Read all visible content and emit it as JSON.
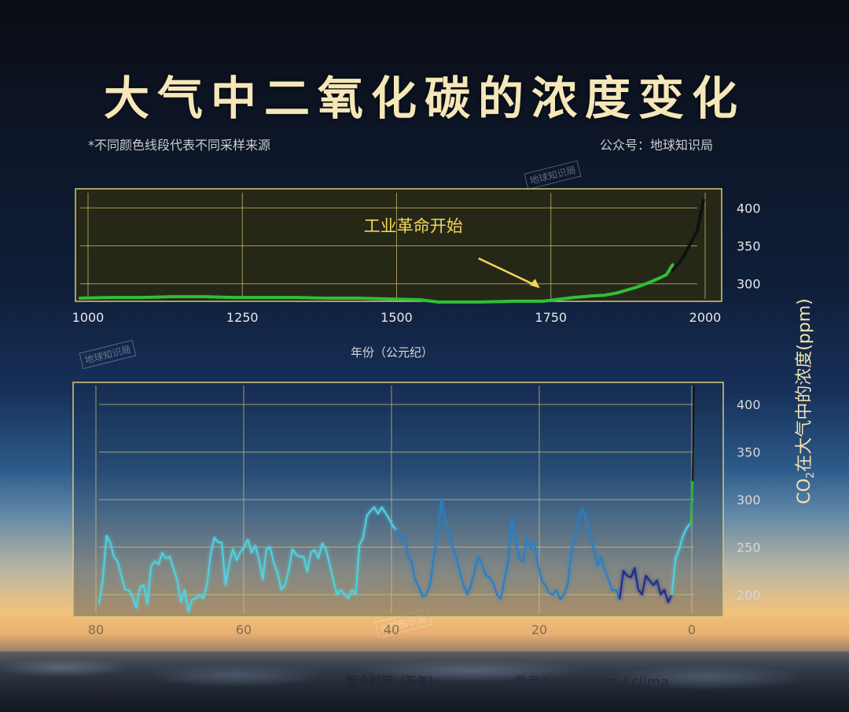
{
  "title": "大气中二氧化碳的浓度变化",
  "note": "*不同颜色线段代表不同采样来源",
  "source": "公众号：地球知识局",
  "watermark": "地球知识局",
  "y_axis_label_main": "CO",
  "y_axis_label_sub": "2",
  "y_axis_label_rest": "在大气中的浓度(ppm)",
  "reference": "参考：wiki.com / clima",
  "colors": {
    "title": "#f6e7b8",
    "grid": "#d8c878",
    "green": "#2fbf3a",
    "black": "#111111",
    "cyan": "#4fd3e0",
    "blue": "#2a7fc2",
    "navy": "#1a2a90"
  },
  "chart_data": [
    {
      "type": "line",
      "xlabel": "年份（公元纪）",
      "ylabel": "",
      "xlim": [
        1000,
        2000
      ],
      "ylim": [
        280,
        420
      ],
      "x_ticks": [
        "1000",
        "1250",
        "1500",
        "1750",
        "2000"
      ],
      "y_ticks": [
        "300",
        "350",
        "400"
      ],
      "annotation": {
        "text": "工业革命开始",
        "x": 1750,
        "y": 290
      },
      "series": [
        {
          "color": "green",
          "x": [
            1000,
            1050,
            1100,
            1150,
            1200,
            1250,
            1300,
            1350,
            1400,
            1450,
            1500,
            1550,
            1580,
            1600,
            1650,
            1700,
            1750,
            1780,
            1800,
            1830,
            1850,
            1870,
            1900,
            1920,
            1940,
            1950,
            1960
          ],
          "y": [
            281,
            282,
            282,
            283,
            283,
            282,
            282,
            282,
            281,
            281,
            280,
            279,
            276,
            276,
            276,
            277,
            277,
            280,
            282,
            284,
            285,
            288,
            295,
            301,
            308,
            312,
            325
          ]
        },
        {
          "color": "black",
          "x": [
            1960,
            1970,
            1980,
            1990,
            2000,
            2010
          ],
          "y": [
            318,
            327,
            339,
            355,
            370,
            410
          ]
        }
      ]
    },
    {
      "type": "line",
      "xlabel": "距今时间（万年）",
      "ylabel": "",
      "xlim": [
        80,
        0
      ],
      "ylim": [
        180,
        420
      ],
      "x_ticks": [
        "80",
        "60",
        "40",
        "20",
        "0"
      ],
      "y_ticks": [
        "200",
        "250",
        "300",
        "350",
        "400"
      ],
      "series": [
        {
          "color": "cyan",
          "x": [
            80,
            79.5,
            79,
            78.5,
            78,
            77.5,
            77,
            76.5,
            76,
            75.5,
            75,
            74.5,
            74,
            73.5,
            73,
            72.5,
            72,
            71.5,
            71,
            70.5,
            70,
            69.5,
            69,
            68.5,
            68,
            67.5,
            67,
            66.5,
            66,
            65.5,
            65,
            64.5,
            64,
            63.5,
            63,
            62.5,
            62,
            61.5,
            61,
            60.5,
            60,
            59.5,
            59,
            58.5,
            58,
            57.5,
            57,
            56.5,
            56,
            55.5,
            55,
            54.5,
            54,
            53.5,
            53,
            52.5,
            52,
            51.5,
            51,
            50.5,
            50,
            49.5,
            49,
            48.5,
            48,
            47.5,
            47,
            46.5,
            46,
            45.5,
            45,
            44.5,
            44,
            43.5,
            43,
            42.5,
            42,
            41.5,
            41,
            40.5,
            40
          ],
          "y": [
            190,
            215,
            262,
            255,
            240,
            235,
            220,
            205,
            205,
            198,
            186,
            208,
            210,
            190,
            230,
            235,
            232,
            244,
            238,
            240,
            228,
            215,
            192,
            205,
            182,
            195,
            196,
            200,
            196,
            210,
            242,
            260,
            255,
            255,
            210,
            232,
            248,
            236,
            245,
            250,
            258,
            244,
            252,
            237,
            216,
            248,
            250,
            233,
            223,
            205,
            210,
            226,
            248,
            242,
            240,
            240,
            224,
            245,
            247,
            238,
            254,
            248,
            232,
            215,
            200,
            205,
            200,
            196,
            205,
            200,
            252,
            260,
            283,
            288,
            292,
            285,
            292,
            286,
            280,
            272,
            268
          ]
        },
        {
          "color": "blue",
          "x": [
            40,
            39.5,
            39,
            38.5,
            38,
            37.5,
            37,
            36.5,
            36,
            35.5,
            35,
            34.5,
            34,
            33.5,
            33,
            32.5,
            32,
            31.5,
            31,
            30.5,
            30,
            29.5,
            29,
            28.5,
            28,
            27.5,
            27,
            26.5,
            26,
            25.5,
            25,
            24.5,
            24,
            23.5,
            23,
            22.5,
            22,
            21.5,
            21,
            20.5,
            20,
            19.5,
            19,
            18.5,
            18,
            17.5,
            17,
            16.5,
            16,
            15.5,
            15,
            14.5,
            14,
            13.5,
            13,
            12.5,
            12,
            11.5,
            11,
            10.5,
            10
          ],
          "y": [
            268,
            258,
            262,
            242,
            235,
            215,
            208,
            198,
            200,
            210,
            240,
            260,
            300,
            280,
            265,
            250,
            240,
            224,
            210,
            200,
            210,
            225,
            240,
            232,
            220,
            218,
            212,
            200,
            195,
            215,
            235,
            280,
            258,
            238,
            235,
            260,
            248,
            255,
            232,
            215,
            210,
            202,
            200,
            205,
            195,
            200,
            210,
            245,
            262,
            282,
            290,
            278,
            262,
            248,
            230,
            240,
            226,
            216,
            204,
            205,
            196
          ]
        },
        {
          "color": "navy",
          "x": [
            10,
            9.5,
            9,
            8.5,
            8,
            7.5,
            7,
            6.5,
            6,
            5.5,
            5,
            4.5,
            4,
            3.5,
            3
          ],
          "y": [
            196,
            225,
            220,
            218,
            228,
            205,
            200,
            220,
            215,
            210,
            215,
            200,
            205,
            192,
            200
          ]
        },
        {
          "color": "cyan",
          "x": [
            3,
            2.5,
            2,
            1.5,
            1,
            0.5
          ],
          "y": [
            200,
            238,
            248,
            262,
            270,
            275
          ]
        },
        {
          "color": "green",
          "x": [
            0.5,
            0.4,
            0.3,
            0.2
          ],
          "y": [
            275,
            285,
            300,
            320
          ]
        },
        {
          "color": "black",
          "x": [
            0.2,
            0.15,
            0.1,
            0.05,
            0.02
          ],
          "y": [
            320,
            350,
            380,
            405,
            420
          ]
        }
      ]
    }
  ]
}
